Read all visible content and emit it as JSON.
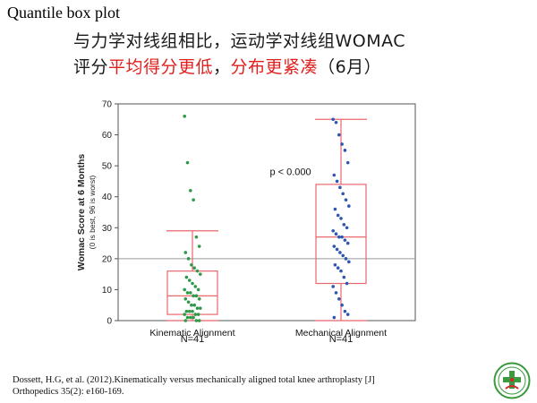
{
  "slide": {
    "title": "Quantile box plot",
    "headline_line1": "与力学对线组相比，运动学对线组WOMAC",
    "headline_line2_a": "评分",
    "headline_line2_b": "平均得分更低",
    "headline_line2_c": "，",
    "headline_line2_d": "分布更紧凑",
    "headline_line2_e": "（6月）",
    "citation_line1": "Dossett, H.G, et al. (2012).Kinematically versus mechanically aligned total knee arthroplasty [J]",
    "citation_line2": "Orthopedics 35(2): e160-169.",
    "logo_icon": "hospital-emblem-icon"
  },
  "chart_data": {
    "type": "box",
    "ylabel": "Womac Score at 6 Months",
    "ylabel_sub": "(0 is best, 96 is worst)",
    "ylim": [
      0,
      70
    ],
    "yticks": [
      0,
      10,
      20,
      30,
      40,
      50,
      60,
      70
    ],
    "reference_line": 20,
    "annotation": "p < 0.000",
    "categories": [
      "Kinematic Alignment",
      "Mechanical Alignment"
    ],
    "grid": false,
    "groups": [
      {
        "name": "Kinematic Alignment",
        "n_label": "N=41",
        "color": "#2e9a47",
        "box_color": "#e8686e",
        "min": 0,
        "q1": 2,
        "median": 8,
        "q3": 16,
        "max": 29,
        "points": [
          66,
          51,
          42,
          39,
          27,
          24,
          22,
          20,
          18,
          17,
          16,
          15,
          14,
          13,
          12,
          11,
          10,
          10,
          9,
          9,
          8,
          8,
          7,
          7,
          6,
          5,
          5,
          4,
          4,
          3,
          3,
          3,
          2,
          2,
          2,
          1,
          1,
          1,
          0,
          0,
          0
        ]
      },
      {
        "name": "Mechanical Alignment",
        "n_label": "N=41",
        "color": "#2f56b0",
        "box_color": "#e8686e",
        "min": 0,
        "q1": 12,
        "median": 27,
        "q3": 44,
        "max": 65,
        "points": [
          65,
          64,
          60,
          57,
          55,
          51,
          47,
          45,
          43,
          41,
          39,
          37,
          36,
          34,
          33,
          31,
          30,
          29,
          28,
          27,
          27,
          26,
          25,
          24,
          23,
          22,
          21,
          20,
          19,
          18,
          17,
          16,
          14,
          12,
          11,
          9,
          7,
          5,
          3,
          2,
          1
        ]
      }
    ]
  }
}
